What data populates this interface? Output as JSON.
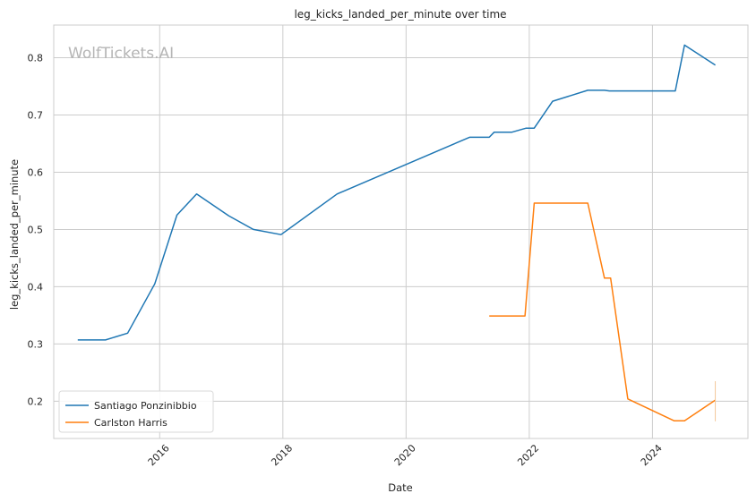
{
  "chart_data": {
    "type": "line",
    "title": "leg_kicks_landed_per_minute over time",
    "xlabel": "Date",
    "ylabel": "leg_kicks_landed_per_minute",
    "watermark": "WolfTickets.AI",
    "x_ticks": [
      "2016",
      "2018",
      "2020",
      "2022",
      "2024"
    ],
    "y_ticks": [
      "0.2",
      "0.3",
      "0.4",
      "0.5",
      "0.6",
      "0.7",
      "0.8"
    ],
    "xlim": [
      2014.28,
      2025.55
    ],
    "ylim": [
      0.135,
      0.857
    ],
    "grid": true,
    "legend_position": "lower-left",
    "series": [
      {
        "name": "Santiago Ponzinibbio",
        "color": "#1f77b4",
        "x": [
          2014.67,
          2015.12,
          2015.48,
          2015.92,
          2016.28,
          2016.6,
          2017.12,
          2017.52,
          2017.97,
          2018.88,
          2021.03,
          2021.35,
          2021.43,
          2021.72,
          2021.95,
          2022.08,
          2022.38,
          2022.95,
          2023.22,
          2023.3,
          2024.37,
          2024.52,
          2025.02
        ],
        "y": [
          0.307,
          0.307,
          0.319,
          0.405,
          0.525,
          0.562,
          0.524,
          0.5,
          0.491,
          0.562,
          0.661,
          0.661,
          0.67,
          0.67,
          0.677,
          0.677,
          0.724,
          0.743,
          0.743,
          0.742,
          0.742,
          0.822,
          0.787
        ]
      },
      {
        "name": "Carlston Harris",
        "color": "#ff7f0e",
        "x": [
          2021.35,
          2021.93,
          2022.08,
          2022.95,
          2023.22,
          2023.32,
          2023.6,
          2024.35,
          2024.52,
          2025.02
        ],
        "y": [
          0.349,
          0.349,
          0.546,
          0.546,
          0.415,
          0.415,
          0.204,
          0.166,
          0.166,
          0.202
        ]
      }
    ]
  }
}
